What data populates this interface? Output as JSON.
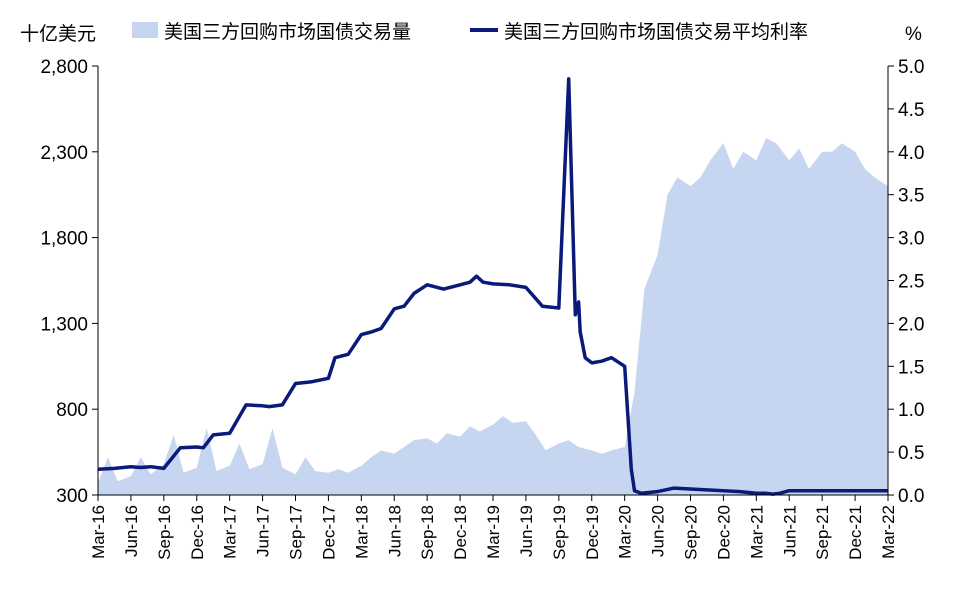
{
  "chart_data": {
    "type": "area+line",
    "y_left_label": "十亿美元",
    "y_right_label": "%",
    "y_left_ticks": [
      "300",
      "800",
      "1,300",
      "1,800",
      "2,300",
      "2,800"
    ],
    "y_right_ticks": [
      "0.0",
      "0.5",
      "1.0",
      "1.5",
      "2.0",
      "2.5",
      "3.0",
      "3.5",
      "4.0",
      "4.5",
      "5.0"
    ],
    "y_left_range": [
      300,
      2800
    ],
    "y_right_range": [
      0,
      5.0
    ],
    "x_ticks": [
      "Mar-16",
      "Jun-16",
      "Sep-16",
      "Dec-16",
      "Mar-17",
      "Jun-17",
      "Sep-17",
      "Dec-17",
      "Mar-18",
      "Jun-18",
      "Sep-18",
      "Dec-18",
      "Mar-19",
      "Jun-19",
      "Sep-19",
      "Dec-19",
      "Mar-20",
      "Jun-20",
      "Sep-20",
      "Dec-20",
      "Mar-21",
      "Jun-21",
      "Sep-21",
      "Dec-21",
      "Mar-22"
    ],
    "legend": [
      {
        "label": "美国三方回购市场国债交易量",
        "color": "#c6d6f0",
        "kind": "area"
      },
      {
        "label": "美国三方回购市场国债交易平均利率",
        "color": "#0a1a7a",
        "kind": "line"
      }
    ],
    "series": [
      {
        "name": "美国三方回购市场国债交易量",
        "axis": "left",
        "x": [
          0,
          0.3,
          0.6,
          1,
          1.3,
          1.6,
          2,
          2.3,
          2.6,
          3,
          3.3,
          3.6,
          4,
          4.3,
          4.6,
          5,
          5.3,
          5.6,
          6,
          6.3,
          6.6,
          7,
          7.3,
          7.6,
          8,
          8.3,
          8.6,
          9,
          9.3,
          9.6,
          10,
          10.3,
          10.6,
          11,
          11.3,
          11.6,
          12,
          12.3,
          12.6,
          13,
          13.3,
          13.6,
          14,
          14.3,
          14.6,
          15,
          15.3,
          15.6,
          16,
          16.3,
          16.6,
          17,
          17.3,
          17.6,
          18,
          18.3,
          18.6,
          19,
          19.3,
          19.6,
          20,
          20.3,
          20.6,
          21,
          21.3,
          21.6,
          22,
          22.3,
          22.6,
          23,
          23.3,
          23.6,
          24
        ],
        "values": [
          370,
          520,
          380,
          410,
          520,
          420,
          480,
          650,
          430,
          460,
          690,
          440,
          470,
          600,
          450,
          480,
          690,
          460,
          420,
          520,
          440,
          430,
          450,
          430,
          470,
          520,
          560,
          540,
          580,
          620,
          630,
          600,
          660,
          640,
          700,
          670,
          710,
          760,
          720,
          730,
          650,
          560,
          600,
          620,
          580,
          560,
          540,
          560,
          580,
          900,
          1500,
          1700,
          2050,
          2150,
          2100,
          2150,
          2250,
          2350,
          2200,
          2300,
          2250,
          2380,
          2350,
          2250,
          2320,
          2200,
          2300,
          2300,
          2350,
          2300,
          2200,
          2150,
          2100
        ]
      },
      {
        "name": "美国三方回购市场国债交易平均利率",
        "axis": "right",
        "x": [
          0,
          0.5,
          1,
          1.3,
          1.6,
          2,
          2.5,
          3,
          3.2,
          3.5,
          4,
          4.5,
          5,
          5.2,
          5.6,
          6,
          6.5,
          7,
          7.2,
          7.6,
          8,
          8.3,
          8.6,
          9,
          9.3,
          9.6,
          10,
          10.5,
          11,
          11.3,
          11.5,
          11.7,
          12,
          12.5,
          13,
          13.5,
          14,
          14.3,
          14.5,
          14.6,
          14.65,
          14.7,
          14.8,
          15,
          15.3,
          15.6,
          16,
          16.1,
          16.2,
          16.3,
          16.5,
          17,
          17.5,
          18,
          18.5,
          19,
          19.5,
          20,
          20.3,
          20.5,
          20.7,
          21,
          21.5,
          22,
          23,
          24
        ],
        "values": [
          0.3,
          0.31,
          0.33,
          0.32,
          0.33,
          0.31,
          0.55,
          0.56,
          0.55,
          0.7,
          0.72,
          1.05,
          1.04,
          1.03,
          1.05,
          1.3,
          1.32,
          1.36,
          1.6,
          1.64,
          1.87,
          1.9,
          1.94,
          2.17,
          2.2,
          2.35,
          2.45,
          2.4,
          2.45,
          2.48,
          2.55,
          2.48,
          2.46,
          2.45,
          2.42,
          2.2,
          2.18,
          4.85,
          2.1,
          2.25,
          1.9,
          1.8,
          1.6,
          1.54,
          1.56,
          1.6,
          1.5,
          0.9,
          0.3,
          0.05,
          0.02,
          0.04,
          0.08,
          0.07,
          0.06,
          0.05,
          0.04,
          0.02,
          0.02,
          0.01,
          0.02,
          0.05,
          0.05,
          0.05,
          0.05,
          0.05
        ]
      }
    ]
  }
}
